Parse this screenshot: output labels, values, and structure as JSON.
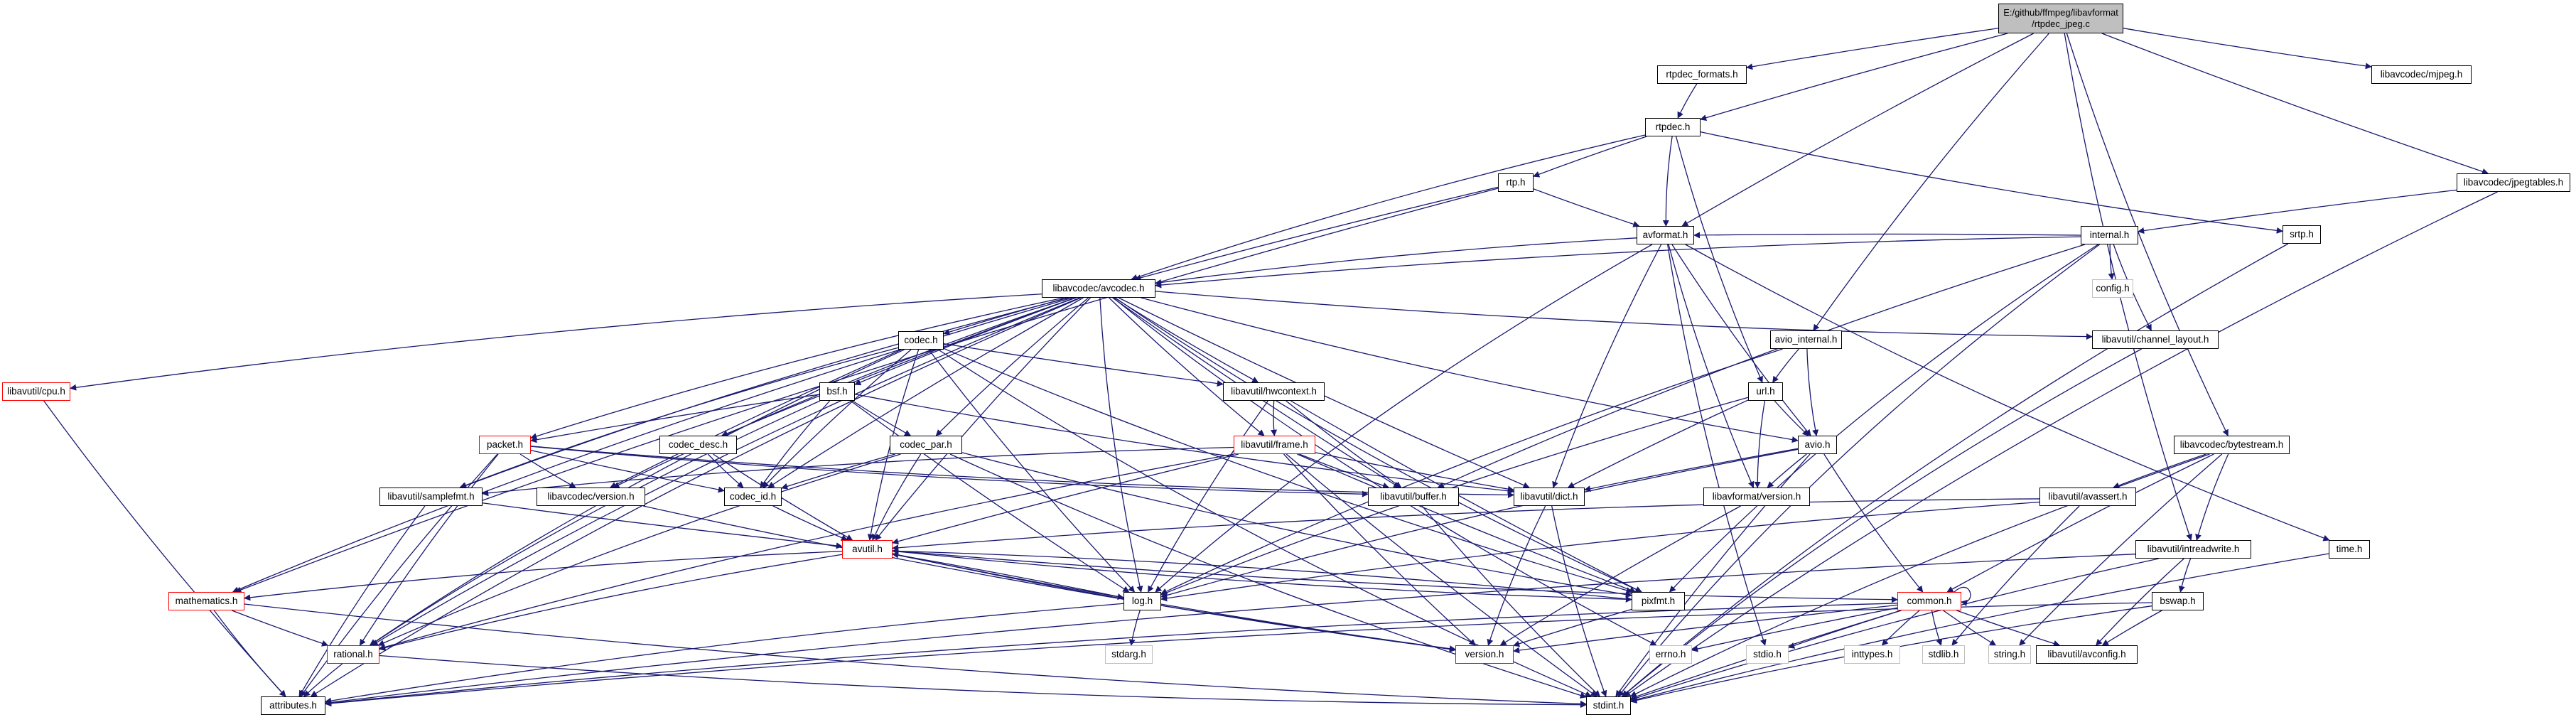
{
  "root": {
    "line1": "E:/github/ffmpeg/libavformat",
    "line2": "/rtpdec_jpeg.c"
  },
  "colors": {
    "edge": "#191970",
    "edge_light": "#a9a9a9",
    "red_border": "#ff0000",
    "grey_border": "#bfbfbf",
    "root_fill": "#bfbfbf"
  },
  "nodes": [
    {
      "id": "root",
      "label": "E:/github/ffmpeg/libavformat/rtpdec_jpeg.c"
    },
    {
      "id": "rtpdec_formats",
      "label": "rtpdec_formats.h"
    },
    {
      "id": "mjpeg",
      "label": "libavcodec/mjpeg.h"
    },
    {
      "id": "rtpdec",
      "label": "rtpdec.h"
    },
    {
      "id": "jpegtables",
      "label": "libavcodec/jpegtables.h"
    },
    {
      "id": "rtp",
      "label": "rtp.h"
    },
    {
      "id": "srtp",
      "label": "srtp.h"
    },
    {
      "id": "avformat",
      "label": "avformat.h"
    },
    {
      "id": "internal",
      "label": "internal.h"
    },
    {
      "id": "config",
      "label": "config.h"
    },
    {
      "id": "avcodec",
      "label": "libavcodec/avcodec.h"
    },
    {
      "id": "codec",
      "label": "codec.h"
    },
    {
      "id": "bsf",
      "label": "bsf.h"
    },
    {
      "id": "hwcontext",
      "label": "libavutil/hwcontext.h"
    },
    {
      "id": "avio_internal",
      "label": "avio_internal.h"
    },
    {
      "id": "channel_layout",
      "label": "libavutil/channel_layout.h"
    },
    {
      "id": "cpu",
      "label": "libavutil/cpu.h"
    },
    {
      "id": "url",
      "label": "url.h"
    },
    {
      "id": "packet",
      "label": "packet.h"
    },
    {
      "id": "codec_desc",
      "label": "codec_desc.h"
    },
    {
      "id": "codec_par",
      "label": "codec_par.h"
    },
    {
      "id": "frame",
      "label": "libavutil/frame.h"
    },
    {
      "id": "avio",
      "label": "avio.h"
    },
    {
      "id": "bytestream",
      "label": "libavcodec/bytestream.h"
    },
    {
      "id": "samplefmt",
      "label": "libavutil/samplefmt.h"
    },
    {
      "id": "lavc_version",
      "label": "libavcodec/version.h"
    },
    {
      "id": "codec_id",
      "label": "codec_id.h"
    },
    {
      "id": "buffer",
      "label": "libavutil/buffer.h"
    },
    {
      "id": "dict",
      "label": "libavutil/dict.h"
    },
    {
      "id": "lavf_version",
      "label": "libavformat/version.h"
    },
    {
      "id": "avassert",
      "label": "libavutil/avassert.h"
    },
    {
      "id": "avutil",
      "label": "avutil.h"
    },
    {
      "id": "intreadwrite",
      "label": "libavutil/intreadwrite.h"
    },
    {
      "id": "time",
      "label": "time.h"
    },
    {
      "id": "mathematics",
      "label": "mathematics.h"
    },
    {
      "id": "log",
      "label": "log.h"
    },
    {
      "id": "pixfmt",
      "label": "pixfmt.h"
    },
    {
      "id": "common",
      "label": "common.h"
    },
    {
      "id": "bswap",
      "label": "bswap.h"
    },
    {
      "id": "rational",
      "label": "rational.h"
    },
    {
      "id": "stdarg",
      "label": "stdarg.h"
    },
    {
      "id": "version",
      "label": "version.h"
    },
    {
      "id": "errno",
      "label": "errno.h"
    },
    {
      "id": "stdio",
      "label": "stdio.h"
    },
    {
      "id": "inttypes",
      "label": "inttypes.h"
    },
    {
      "id": "stdlib",
      "label": "stdlib.h"
    },
    {
      "id": "string",
      "label": "string.h"
    },
    {
      "id": "avconfig",
      "label": "libavutil/avconfig.h"
    },
    {
      "id": "attributes",
      "label": "attributes.h"
    },
    {
      "id": "stdint",
      "label": "stdint.h"
    }
  ],
  "edges": [
    [
      "root",
      "rtpdec_formats"
    ],
    [
      "root",
      "mjpeg"
    ],
    [
      "root",
      "rtpdec"
    ],
    [
      "root",
      "jpegtables"
    ],
    [
      "root",
      "avformat"
    ],
    [
      "root",
      "avio_internal"
    ],
    [
      "root",
      "bytestream"
    ],
    [
      "root",
      "intreadwrite"
    ],
    [
      "rtpdec_formats",
      "rtpdec"
    ],
    [
      "rtpdec",
      "rtp"
    ],
    [
      "rtpdec",
      "srtp"
    ],
    [
      "rtpdec",
      "avformat"
    ],
    [
      "rtpdec",
      "avcodec"
    ],
    [
      "rtpdec",
      "url"
    ],
    [
      "rtp",
      "avformat"
    ],
    [
      "rtp",
      "avcodec"
    ],
    [
      "rtp",
      "mathematics"
    ],
    [
      "jpegtables",
      "internal"
    ],
    [
      "jpegtables",
      "stdint"
    ],
    [
      "srtp",
      "stdint"
    ],
    [
      "avformat",
      "time"
    ],
    [
      "avformat",
      "stdio"
    ],
    [
      "avformat",
      "avcodec"
    ],
    [
      "avformat",
      "avio"
    ],
    [
      "avformat",
      "dict"
    ],
    [
      "avformat",
      "log"
    ],
    [
      "avformat",
      "lavf_version"
    ],
    [
      "internal",
      "config"
    ],
    [
      "internal",
      "channel_layout"
    ],
    [
      "internal",
      "stdint"
    ],
    [
      "internal",
      "avformat"
    ],
    [
      "internal",
      "avcodec"
    ],
    [
      "internal",
      "buffer"
    ],
    [
      "internal",
      "pixfmt"
    ],
    [
      "avio_internal",
      "url"
    ],
    [
      "avio_internal",
      "avio"
    ],
    [
      "avio_internal",
      "log"
    ],
    [
      "url",
      "avio"
    ],
    [
      "url",
      "dict"
    ],
    [
      "url",
      "lavf_version"
    ],
    [
      "url",
      "log"
    ],
    [
      "avio",
      "common"
    ],
    [
      "avio",
      "dict"
    ],
    [
      "avio",
      "log"
    ],
    [
      "avio",
      "stdint"
    ],
    [
      "avio",
      "lavf_version"
    ],
    [
      "avcodec",
      "errno"
    ],
    [
      "avcodec",
      "samplefmt"
    ],
    [
      "avcodec",
      "attributes"
    ],
    [
      "avcodec",
      "avutil"
    ],
    [
      "avcodec",
      "buffer"
    ],
    [
      "avcodec",
      "cpu"
    ],
    [
      "avcodec",
      "channel_layout"
    ],
    [
      "avcodec",
      "dict"
    ],
    [
      "avcodec",
      "frame"
    ],
    [
      "avcodec",
      "log"
    ],
    [
      "avcodec",
      "pixfmt"
    ],
    [
      "avcodec",
      "rational"
    ],
    [
      "avcodec",
      "codec"
    ],
    [
      "avcodec",
      "codec_desc"
    ],
    [
      "avcodec",
      "codec_id"
    ],
    [
      "avcodec",
      "codec_par"
    ],
    [
      "avcodec",
      "bsf"
    ],
    [
      "avcodec",
      "packet"
    ],
    [
      "avcodec",
      "lavc_version"
    ],
    [
      "avcodec",
      "hwcontext"
    ],
    [
      "avcodec",
      "mathematics"
    ],
    [
      "avcodec",
      "avio"
    ],
    [
      "codec",
      "stdint"
    ],
    [
      "codec",
      "avutil"
    ],
    [
      "codec",
      "hwcontext"
    ],
    [
      "codec",
      "log"
    ],
    [
      "codec",
      "pixfmt"
    ],
    [
      "codec",
      "rational"
    ],
    [
      "codec",
      "samplefmt"
    ],
    [
      "codec",
      "codec_id"
    ],
    [
      "codec",
      "lavc_version"
    ],
    [
      "bsf",
      "dict"
    ],
    [
      "bsf",
      "log"
    ],
    [
      "bsf",
      "rational"
    ],
    [
      "bsf",
      "codec_id"
    ],
    [
      "bsf",
      "codec_par"
    ],
    [
      "bsf",
      "packet"
    ],
    [
      "hwcontext",
      "buffer"
    ],
    [
      "hwcontext",
      "frame"
    ],
    [
      "hwcontext",
      "log"
    ],
    [
      "hwcontext",
      "pixfmt"
    ],
    [
      "codec_desc",
      "avutil"
    ],
    [
      "codec_desc",
      "codec_id"
    ],
    [
      "codec_par",
      "stdint"
    ],
    [
      "codec_par",
      "avutil"
    ],
    [
      "codec_par",
      "rational"
    ],
    [
      "codec_par",
      "pixfmt"
    ],
    [
      "codec_par",
      "codec_id"
    ],
    [
      "packet",
      "attributes"
    ],
    [
      "packet",
      "buffer"
    ],
    [
      "packet",
      "dict"
    ],
    [
      "packet",
      "rational"
    ],
    [
      "packet",
      "codec_id"
    ],
    [
      "packet",
      "lavc_version"
    ],
    [
      "frame",
      "stdint"
    ],
    [
      "frame",
      "avutil"
    ],
    [
      "frame",
      "buffer"
    ],
    [
      "frame",
      "dict"
    ],
    [
      "frame",
      "rational"
    ],
    [
      "frame",
      "samplefmt"
    ],
    [
      "frame",
      "pixfmt"
    ],
    [
      "frame",
      "version"
    ],
    [
      "samplefmt",
      "avutil"
    ],
    [
      "samplefmt",
      "attributes"
    ],
    [
      "lavc_version",
      "version"
    ],
    [
      "codec_id",
      "avutil"
    ],
    [
      "buffer",
      "stdint"
    ],
    [
      "dict",
      "stdint"
    ],
    [
      "dict",
      "version"
    ],
    [
      "lavf_version",
      "version"
    ],
    [
      "avassert",
      "avutil"
    ],
    [
      "avassert",
      "log"
    ],
    [
      "avassert",
      "stdlib"
    ],
    [
      "bytestream",
      "avassert"
    ],
    [
      "bytestream",
      "common"
    ],
    [
      "bytestream",
      "intreadwrite"
    ],
    [
      "bytestream",
      "stdint"
    ],
    [
      "bytestream",
      "string"
    ],
    [
      "intreadwrite",
      "avconfig"
    ],
    [
      "intreadwrite",
      "attributes"
    ],
    [
      "intreadwrite",
      "bswap"
    ],
    [
      "intreadwrite",
      "stdint"
    ],
    [
      "bswap",
      "avconfig"
    ],
    [
      "bswap",
      "attributes"
    ],
    [
      "bswap",
      "stdint"
    ],
    [
      "time",
      "stdint"
    ],
    [
      "avutil",
      "common"
    ],
    [
      "avutil",
      "rational"
    ],
    [
      "avutil",
      "version"
    ],
    [
      "avutil",
      "macros_skip"
    ],
    [
      "avutil",
      "mathematics"
    ],
    [
      "avutil",
      "log"
    ],
    [
      "avutil",
      "pixfmt"
    ],
    [
      "mathematics",
      "stdint"
    ],
    [
      "mathematics",
      "attributes"
    ],
    [
      "mathematics",
      "rational"
    ],
    [
      "log",
      "stdarg"
    ],
    [
      "log",
      "avutil"
    ],
    [
      "log",
      "attributes"
    ],
    [
      "log",
      "version"
    ],
    [
      "pixfmt",
      "avutil"
    ],
    [
      "pixfmt",
      "version"
    ],
    [
      "common",
      "errno"
    ],
    [
      "common",
      "inttypes"
    ],
    [
      "common",
      "limits_skip"
    ],
    [
      "common",
      "stdint"
    ],
    [
      "common",
      "stdio"
    ],
    [
      "common",
      "stdlib"
    ],
    [
      "common",
      "string"
    ],
    [
      "common",
      "attributes"
    ],
    [
      "common",
      "version"
    ],
    [
      "common",
      "avconfig"
    ],
    [
      "common",
      "common"
    ],
    [
      "rational",
      "stdint"
    ],
    [
      "rational",
      "attributes"
    ],
    [
      "channel_layout",
      "stdint"
    ],
    [
      "cpu",
      "attributes"
    ]
  ]
}
